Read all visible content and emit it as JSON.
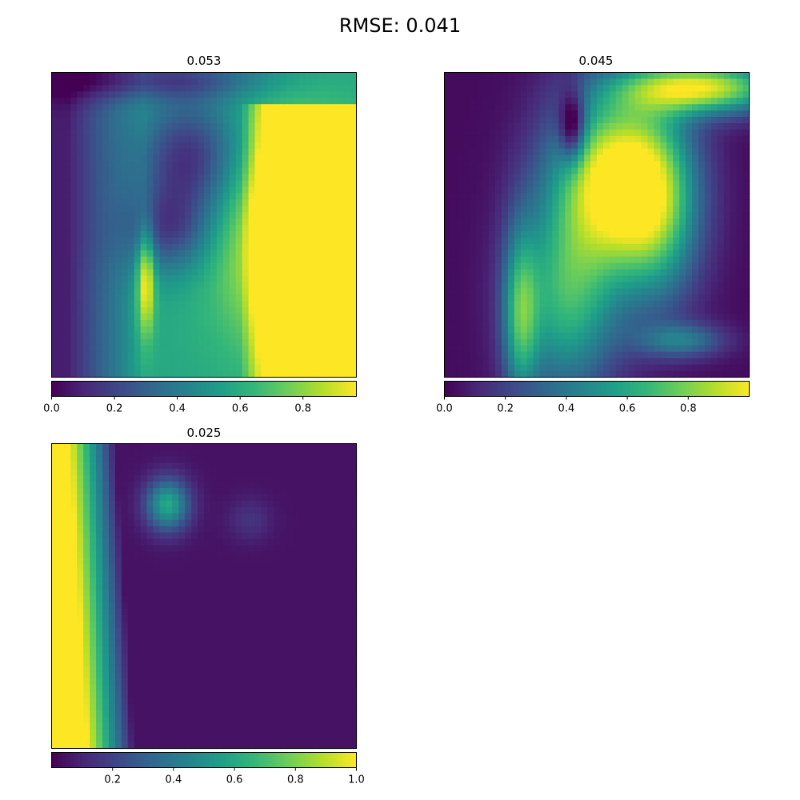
{
  "figure": {
    "title": "RMSE: 0.041"
  },
  "colormap": {
    "name": "viridis",
    "stops": [
      "#440154",
      "#482878",
      "#3e4989",
      "#31688e",
      "#26828e",
      "#1f9e89",
      "#35b779",
      "#6ece58",
      "#b5de2b",
      "#fde725"
    ]
  },
  "chart_data": [
    {
      "type": "heatmap",
      "title": "0.053",
      "value_range": [
        0.0,
        0.97
      ],
      "colorbar": {
        "ticks": [
          0.0,
          0.2,
          0.4,
          0.6,
          0.8
        ],
        "tick_labels": [
          "0.0",
          "0.2",
          "0.4",
          "0.6",
          "0.8"
        ]
      },
      "description_regions": "low values on left edge, dark blobs upper-middle, high (~0.9) region on right side"
    },
    {
      "type": "heatmap",
      "title": "0.045",
      "value_range": [
        0.0,
        1.0
      ],
      "colorbar": {
        "ticks": [
          0.0,
          0.2,
          0.4,
          0.6,
          0.8
        ],
        "tick_labels": [
          "0.0",
          "0.2",
          "0.4",
          "0.6",
          "0.8"
        ]
      },
      "description_regions": "low on left and right, high (~1.0) central band from top-right to bottom-left"
    },
    {
      "type": "heatmap",
      "title": "0.025",
      "value_range": [
        0.0,
        1.0
      ],
      "colorbar": {
        "ticks": [
          0.2,
          0.4,
          0.6,
          0.8,
          1.0
        ],
        "tick_labels": [
          "0.2",
          "0.4",
          "0.6",
          "0.8",
          "1.0"
        ]
      },
      "description_regions": "high (~1.0) on left edge, fading to ~0 on remaining area"
    }
  ]
}
